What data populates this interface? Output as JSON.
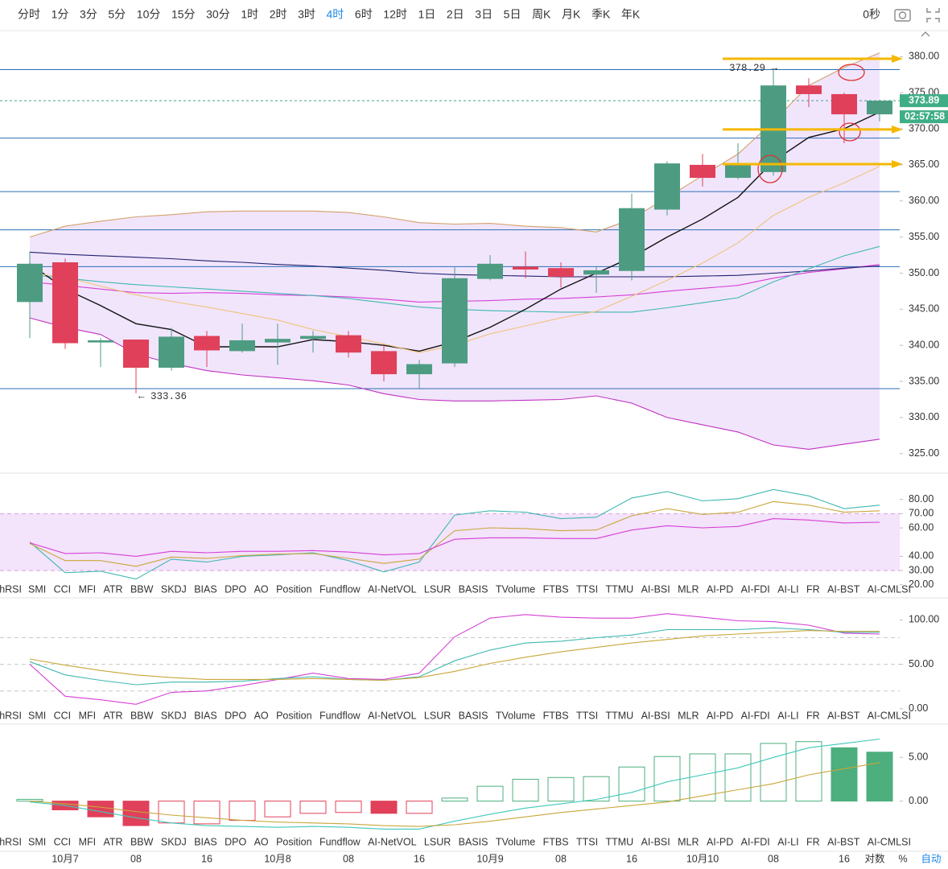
{
  "toolbar": {
    "items": [
      "分时",
      "1分",
      "3分",
      "5分",
      "10分",
      "15分",
      "30分",
      "1时",
      "2时",
      "3时",
      "4时",
      "6时",
      "12时",
      "1日",
      "2日",
      "3日",
      "5日",
      "周K",
      "月K",
      "季K",
      "年K"
    ],
    "active": 10,
    "active_color": "#1e88e5",
    "right_label": "0秒"
  },
  "price_chart": {
    "ylim": [
      322.3,
      383.6
    ],
    "yticks": [
      {
        "value": 325,
        "label": "325.00"
      },
      {
        "value": 330,
        "label": "330.00"
      },
      {
        "value": 335,
        "label": "335.00"
      },
      {
        "value": 340,
        "label": "340.00"
      },
      {
        "value": 345,
        "label": "345.00"
      },
      {
        "value": 350,
        "label": "350.00"
      },
      {
        "value": 355,
        "label": "355.00"
      },
      {
        "value": 360,
        "label": "360.00"
      },
      {
        "value": 365,
        "label": "365.00"
      },
      {
        "value": 370,
        "label": "370.00"
      },
      {
        "value": 375,
        "label": "375.00"
      },
      {
        "value": 380,
        "label": "380.00"
      }
    ],
    "candles": {
      "open": [
        346,
        351.5,
        340.4,
        340.8,
        336.9,
        341.3,
        339.2,
        340.4,
        340.9,
        341.4,
        339.2,
        336,
        337.5,
        349.2,
        350.9,
        350.7,
        349.8,
        350.3,
        358.8,
        365,
        363.2,
        364,
        376,
        374.8,
        372
      ],
      "high": [
        353,
        352,
        341,
        340.8,
        342.4,
        342,
        343,
        343,
        342,
        342,
        340,
        338,
        350.8,
        352.5,
        353,
        351.5,
        351,
        361,
        365.5,
        366.5,
        368,
        378.29,
        377,
        375,
        374
      ],
      "low": [
        341,
        339.5,
        337,
        333.36,
        336.5,
        337,
        339,
        337.3,
        339,
        338.3,
        335,
        334,
        337,
        349,
        349.3,
        348,
        347.3,
        349,
        358,
        362,
        363,
        363.5,
        373,
        368,
        371
      ],
      "close": [
        351.3,
        340.3,
        340.7,
        336.9,
        341.2,
        339.3,
        340.7,
        340.9,
        341.3,
        339,
        336,
        337.4,
        349.3,
        351.3,
        350.5,
        349.5,
        350.4,
        359,
        365.2,
        363.2,
        365,
        376,
        374.8,
        372,
        373.89
      ]
    },
    "up_color": "#4d9c82",
    "down_color": "#e0405a",
    "band_fill": "#efe0fb",
    "lines": [
      {
        "color": "#d4a06a",
        "values": [
          355,
          356.5,
          357.2,
          357.8,
          358.1,
          358.5,
          358.6,
          358.6,
          358.6,
          358.4,
          357.8,
          357,
          356.8,
          356.9,
          356.5,
          356.3,
          355.7,
          357.5,
          360.5,
          363.5,
          366.5,
          371,
          376,
          378.5,
          380.5
        ]
      },
      {
        "color": "#d63fd6",
        "values": [
          348.8,
          348.3,
          347.8,
          347.3,
          347.2,
          347.3,
          347.2,
          347,
          346.9,
          346.7,
          346.4,
          346,
          346.1,
          346.2,
          346.4,
          346.5,
          346.7,
          347,
          347.5,
          347.9,
          348.3,
          349.3,
          350.1,
          350.6,
          351.2
        ]
      },
      {
        "color": "#c030c0",
        "values": [
          343.8,
          342.5,
          341.5,
          338.8,
          337.5,
          336.5,
          335.9,
          335.5,
          335.1,
          334.5,
          333.3,
          332.5,
          332.3,
          332.3,
          332.4,
          332.5,
          333,
          332,
          330,
          329,
          328,
          326.2,
          325.6,
          326.3,
          327
        ]
      },
      {
        "color": "#20206e",
        "values": [
          352.9,
          352.6,
          352.4,
          352.2,
          352,
          351.7,
          351.5,
          351.2,
          351,
          350.7,
          350.4,
          350,
          349.8,
          349.7,
          349.6,
          349.5,
          349.5,
          349.5,
          349.5,
          349.6,
          349.7,
          350,
          350.3,
          350.7,
          351
        ]
      },
      {
        "color": "#3fb8b0",
        "values": [
          349.8,
          349.3,
          348.8,
          348.4,
          348.1,
          347.8,
          347.5,
          347.2,
          346.9,
          346.5,
          345.9,
          345.3,
          345,
          344.8,
          344.7,
          344.6,
          344.6,
          344.6,
          345.2,
          345.9,
          346.6,
          348.8,
          350.6,
          352.4,
          353.7
        ]
      },
      {
        "color": "#111111",
        "values": [
          351.3,
          347.8,
          345.5,
          343,
          342.2,
          339.8,
          339.8,
          339.8,
          340.8,
          340.5,
          340,
          339.2,
          340.5,
          342.5,
          345,
          347.8,
          350,
          352.2,
          355,
          357.5,
          360.5,
          365.5,
          368.8,
          370,
          372.3
        ]
      },
      {
        "color": "#f0c27a",
        "values": [
          350,
          349.5,
          348.2,
          347,
          346.1,
          345.3,
          344.4,
          343.5,
          342.2,
          341.2,
          340.2,
          339,
          340,
          341.6,
          342.7,
          343.8,
          344.7,
          346.8,
          349,
          351.4,
          354.2,
          358,
          360.5,
          362.5,
          364.8
        ]
      }
    ],
    "levels": [
      378.2,
      368.7,
      361.3,
      356,
      350.9,
      334
    ],
    "level_color": "#2a6fb5",
    "arrows": [
      379.7,
      369.9,
      365.1
    ],
    "arrow_color": "#f5b800",
    "last_price": {
      "value": 373.89,
      "label": "373.89"
    },
    "countdown": "02:57:58",
    "high_label": {
      "value": 378.29,
      "label": "378.29 →"
    },
    "low_label": {
      "value": 333.36,
      "label": "← 333.36"
    }
  },
  "panels": [
    {
      "ylim": [
        10.8,
        98.5
      ],
      "yticks": [
        {
          "value": 20,
          "label": "20.00"
        },
        {
          "value": 30,
          "label": "30.00"
        },
        {
          "value": 40,
          "label": "40.00"
        },
        {
          "value": 60,
          "label": "60.00"
        },
        {
          "value": 70,
          "label": "70.00"
        },
        {
          "value": 80,
          "label": "80.00"
        }
      ],
      "dashed": [
        70,
        30
      ],
      "dashed_color": "#d9a0d9",
      "band_fill": "#f3e3fb",
      "series": [
        {
          "color": "#3fb8b0",
          "values": [
            50,
            28.5,
            29.5,
            24,
            38,
            36,
            40,
            41,
            42.5,
            37,
            29,
            36,
            69,
            72,
            71,
            66.5,
            67.5,
            81,
            85.5,
            79,
            80.5,
            87,
            82.5,
            73.5,
            76
          ]
        },
        {
          "color": "#c9a63a",
          "values": [
            49,
            37,
            37,
            33,
            39.5,
            38.5,
            40.5,
            41.5,
            42,
            38.5,
            35,
            38,
            58,
            60,
            59.5,
            58,
            58.5,
            68.5,
            73.5,
            69.5,
            71,
            78.5,
            76,
            71,
            72
          ]
        },
        {
          "color": "#d63fd6",
          "values": [
            49.5,
            42,
            42.5,
            40,
            43.5,
            42.5,
            43.5,
            43.5,
            44,
            43,
            41,
            42,
            52,
            53,
            53,
            52.5,
            52.5,
            58.5,
            61.5,
            60,
            61,
            66.5,
            65.5,
            63.5,
            64
          ]
        }
      ]
    },
    {
      "ylim": [
        -17.4,
        124.8
      ],
      "yticks": [
        {
          "value": 0,
          "label": "0.00"
        },
        {
          "value": 50,
          "label": "50.00"
        },
        {
          "value": 100,
          "label": "100.00"
        }
      ],
      "dashed": [
        80,
        50,
        20
      ],
      "dashed_color": "#c8c8c8",
      "series": [
        {
          "color": "#d63fd6",
          "values": [
            50,
            14,
            10,
            5,
            18.5,
            20,
            26,
            33,
            40,
            34,
            33,
            40,
            81,
            102,
            106,
            103,
            102,
            102,
            107,
            103,
            99,
            98,
            94,
            85,
            84
          ]
        },
        {
          "color": "#3fb8b0",
          "values": [
            53,
            38,
            32,
            27,
            30,
            30,
            31,
            34,
            36,
            33,
            32,
            36,
            54,
            66,
            74,
            76,
            80,
            83,
            89,
            89,
            89,
            91,
            89,
            86,
            86
          ]
        },
        {
          "color": "#c9a63a",
          "values": [
            56,
            49,
            43,
            38,
            35,
            33,
            33,
            33,
            34,
            33,
            32,
            35,
            42,
            51,
            58,
            64,
            69,
            74,
            78,
            82,
            84,
            86,
            88,
            87,
            87
          ]
        }
      ]
    },
    {
      "ylim": [
        -5.74,
        8.8
      ],
      "yticks": [
        {
          "value": 0,
          "label": "0.00"
        },
        {
          "value": 5,
          "label": "5.00"
        }
      ],
      "histogram": {
        "values": [
          0.2,
          -1,
          -1.8,
          -2.8,
          -2.5,
          -2.6,
          -2.2,
          -1.8,
          -1.4,
          -1.3,
          -1.4,
          -1.4,
          0.35,
          1.7,
          2.5,
          2.7,
          2.8,
          3.9,
          5.1,
          5.4,
          5.4,
          6.6,
          6.8,
          6.1,
          5.6
        ],
        "filled": [
          false,
          true,
          true,
          true,
          false,
          false,
          false,
          false,
          false,
          false,
          true,
          false,
          false,
          false,
          false,
          false,
          false,
          false,
          false,
          false,
          false,
          false,
          false,
          true,
          true
        ],
        "up_color": "#4caf7d",
        "down_color": "#e0405a"
      },
      "series": [
        {
          "color": "#3fc8b8",
          "values": [
            -0.1,
            -0.5,
            -1.2,
            -1.9,
            -2.5,
            -2.8,
            -2.9,
            -3,
            -2.9,
            -3,
            -3.2,
            -3.2,
            -2.3,
            -1.5,
            -0.8,
            -0.3,
            0.2,
            1,
            2.2,
            3,
            3.8,
            5,
            6.1,
            6.6,
            7.1
          ]
        },
        {
          "color": "#c9a63a",
          "values": [
            0,
            -0.3,
            -0.7,
            -1.2,
            -1.6,
            -1.9,
            -2.2,
            -2.4,
            -2.5,
            -2.6,
            -2.8,
            -2.9,
            -2.7,
            -2.3,
            -1.8,
            -1.3,
            -0.9,
            -0.5,
            -0.1,
            0.6,
            1.3,
            2,
            3,
            3.7,
            4.4
          ]
        }
      ]
    }
  ],
  "indicator_tabs": [
    "StochRSI",
    "SMI",
    "CCI",
    "MFI",
    "ATR",
    "BBW",
    "SKDJ",
    "BIAS",
    "DPO",
    "AO",
    "Position",
    "Fundflow",
    "AI-NetVOL",
    "LSUR",
    "BASIS",
    "TVolume",
    "FTBS",
    "TTSI",
    "TTMU",
    "AI-BSI",
    "MLR",
    "AI-PD",
    "AI-FDI",
    "AI-LI",
    "FR",
    "AI-BST",
    "AI-CMLSI"
  ],
  "x_axis": {
    "categories": [
      null,
      "10月7",
      null,
      "08",
      null,
      "16",
      null,
      "10月8",
      null,
      "08",
      null,
      "16",
      null,
      "10月9",
      null,
      "08",
      null,
      "16",
      null,
      "10月10",
      null,
      "08",
      null,
      "16",
      null
    ]
  },
  "axis_options": {
    "items": [
      "对数",
      "%",
      "自动"
    ],
    "active": 2
  }
}
